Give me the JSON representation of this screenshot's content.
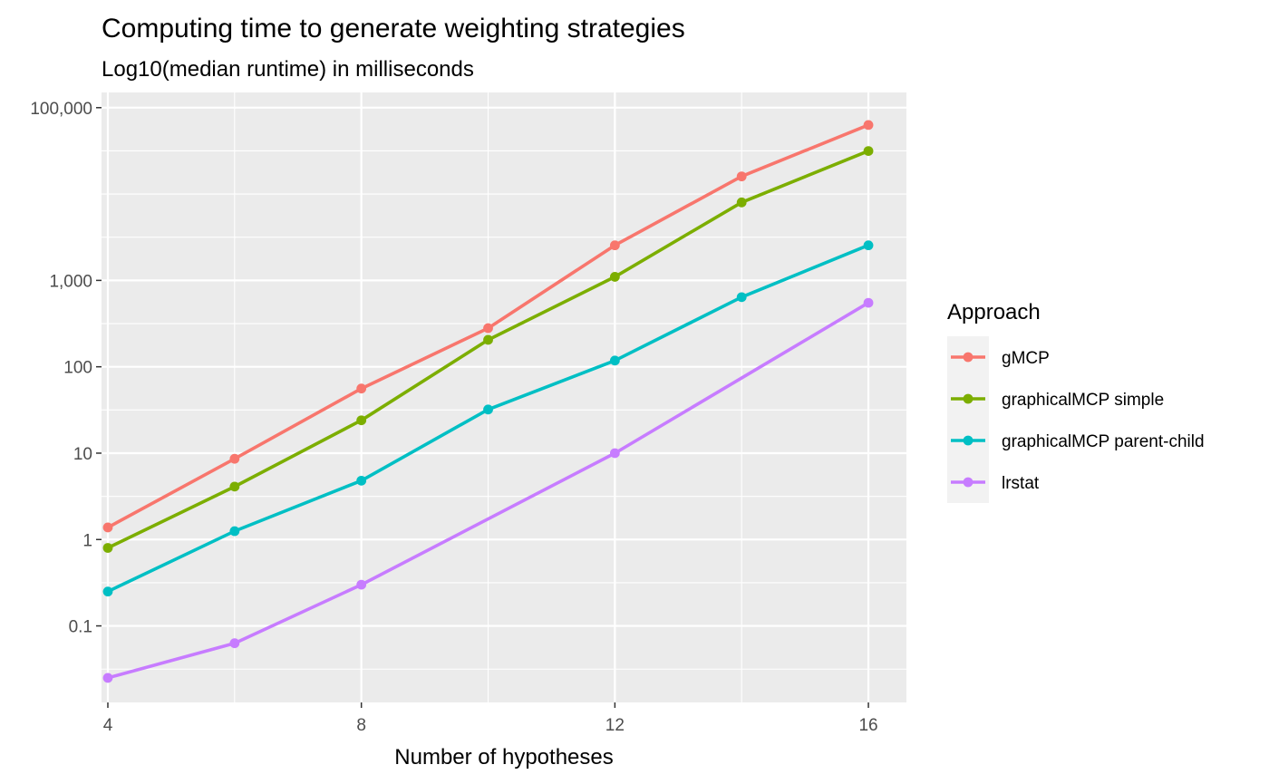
{
  "chart_data": {
    "type": "line",
    "title": "Computing time to generate weighting strategies",
    "subtitle": "Log10(median runtime) in milliseconds",
    "xlabel": "Number of hypotheses",
    "ylabel": "",
    "x_scale": "linear",
    "y_scale": "log10",
    "xlim": [
      3.9,
      16.6
    ],
    "ylim": [
      0.013,
      150000
    ],
    "x_ticks": [
      4,
      8,
      12,
      16
    ],
    "x_tick_labels": [
      "4",
      "8",
      "12",
      "16"
    ],
    "x_minor_ticks": [
      6,
      10,
      14
    ],
    "y_ticks": [
      0.1,
      1,
      10,
      100,
      1000,
      100000
    ],
    "y_tick_labels": [
      "0.1",
      "1",
      "10",
      "100",
      "1,000",
      "100,000"
    ],
    "y_minor_ticks": [
      0.0316,
      0.316,
      3.16,
      31.6,
      316,
      3162,
      10000,
      31623
    ],
    "grid": true,
    "legend_title": "Approach",
    "legend_position": "right",
    "x": [
      4,
      6,
      8,
      10,
      12,
      14,
      16
    ],
    "series": [
      {
        "name": "gMCP",
        "color": "#F8766D",
        "values": [
          1.38,
          8.6,
          56,
          280,
          2550,
          16000,
          63000
        ]
      },
      {
        "name": "graphicalMCP simple",
        "color": "#7CAE00",
        "values": [
          0.8,
          4.1,
          24,
          205,
          1100,
          8000,
          31500
        ]
      },
      {
        "name": "graphicalMCP parent-child",
        "color": "#00BFC4",
        "values": [
          0.25,
          1.25,
          4.8,
          32,
          118,
          640,
          2550
        ]
      },
      {
        "name": "lrstat",
        "color": "#C77CFF",
        "values": [
          0.025,
          0.063,
          0.3,
          null,
          10,
          null,
          550
        ]
      }
    ]
  }
}
